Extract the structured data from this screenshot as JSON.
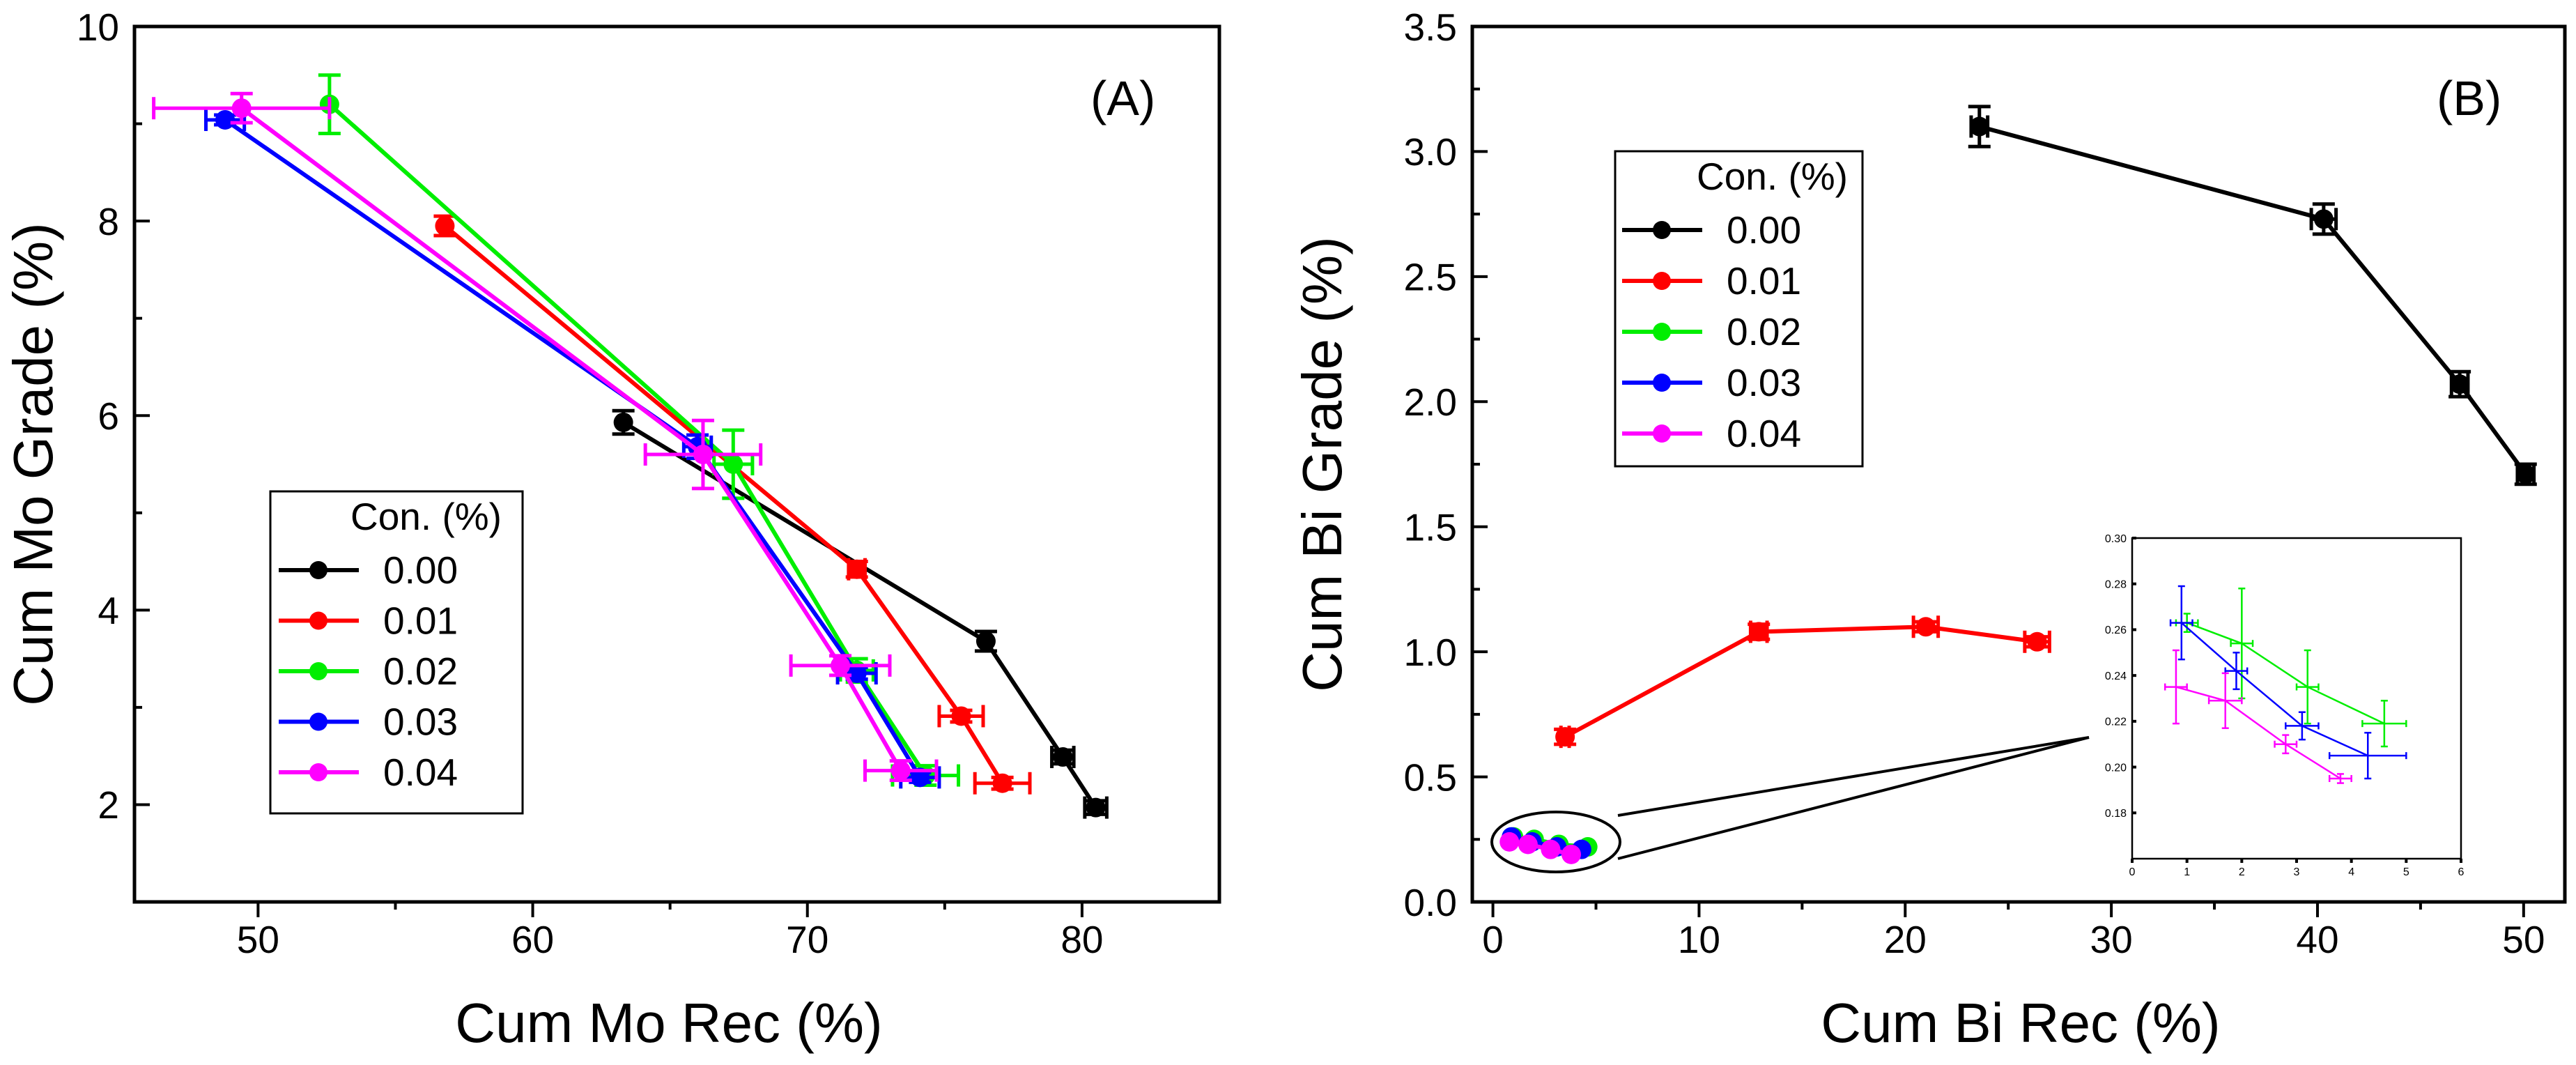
{
  "chart_data": [
    {
      "type": "line",
      "panel_label": "(A)",
      "xlabel": "Cum Mo Rec (%)",
      "ylabel": "Cum Mo Grade (%)",
      "xlim": [
        45.5,
        85
      ],
      "ylim": [
        1,
        10
      ],
      "xticks": [
        "50",
        "60",
        "70",
        "80"
      ],
      "yticks": [
        "2",
        "4",
        "6",
        "8",
        "10"
      ],
      "legend": {
        "title": "Con. (%)",
        "position": "bottom-left"
      },
      "series": [
        {
          "name": "0.00",
          "color": "#000000",
          "marker": "circle",
          "x": [
            63.3,
            76.5,
            79.3,
            80.5
          ],
          "y": [
            5.93,
            3.68,
            2.49,
            1.97
          ],
          "xerr": [
            0,
            0,
            0.4,
            0.4
          ],
          "yerr": [
            0.12,
            0.1,
            0.07,
            0.07
          ]
        },
        {
          "name": "0.01",
          "color": "#ff0000",
          "marker": "circle",
          "x": [
            56.8,
            71.8,
            75.6,
            77.1
          ],
          "y": [
            7.95,
            4.42,
            2.91,
            2.22
          ],
          "xerr": [
            0,
            0.3,
            0.8,
            1.0
          ],
          "yerr": [
            0.1,
            0.08,
            0.06,
            0.06
          ]
        },
        {
          "name": "0.02",
          "color": "#00ee00",
          "marker": "circle",
          "x": [
            52.6,
            67.3,
            71.8,
            74.3
          ],
          "y": [
            9.2,
            5.5,
            3.38,
            2.3
          ],
          "xerr": [
            0,
            0.7,
            0.6,
            1.2
          ],
          "yerr": [
            0.3,
            0.35,
            0.12,
            0.1
          ]
        },
        {
          "name": "0.03",
          "color": "#0000ff",
          "marker": "circle",
          "x": [
            48.8,
            66.0,
            71.8,
            74.1
          ],
          "y": [
            9.04,
            5.68,
            3.35,
            2.28
          ],
          "xerr": [
            0.7,
            0.5,
            0.7,
            0.7
          ],
          "yerr": [
            0.05,
            0.12,
            0.06,
            0.05
          ]
        },
        {
          "name": "0.04",
          "color": "#ff00ff",
          "marker": "circle",
          "x": [
            49.4,
            66.2,
            71.2,
            73.4
          ],
          "y": [
            9.16,
            5.6,
            3.43,
            2.35
          ],
          "xerr": [
            3.2,
            2.1,
            1.8,
            1.3
          ],
          "yerr": [
            0.15,
            0.35,
            0.1,
            0.1
          ]
        }
      ]
    },
    {
      "type": "line",
      "panel_label": "(B)",
      "xlabel": "Cum Bi Rec (%)",
      "ylabel": "Cum Bi Grade (%)",
      "xlim": [
        -1,
        52
      ],
      "ylim": [
        0,
        3.5
      ],
      "xticks": [
        "0",
        "10",
        "20",
        "30",
        "40",
        "50"
      ],
      "yticks": [
        "0.0",
        "0.5",
        "1.0",
        "1.5",
        "2.0",
        "2.5",
        "3.0",
        "3.5"
      ],
      "legend": {
        "title": "Con. (%)",
        "position": "top-left"
      },
      "series": [
        {
          "name": "0.00",
          "color": "#000000",
          "marker": "circle",
          "x": [
            23.6,
            40.3,
            46.9,
            50.1
          ],
          "y": [
            3.1,
            2.73,
            2.07,
            1.71
          ],
          "xerr": [
            0.4,
            0.6,
            0.4,
            0.4
          ],
          "yerr": [
            0.08,
            0.06,
            0.05,
            0.04
          ]
        },
        {
          "name": "0.01",
          "color": "#ff0000",
          "marker": "circle",
          "x": [
            3.5,
            12.9,
            21.0,
            26.4
          ],
          "y": [
            0.66,
            1.08,
            1.1,
            1.04
          ],
          "xerr": [
            0.2,
            0.4,
            0.6,
            0.6
          ],
          "yerr": [
            0.03,
            0.03,
            0.02,
            0.02
          ]
        },
        {
          "name": "0.02",
          "color": "#00ee00",
          "marker": "circle",
          "x": [
            1.0,
            2.0,
            3.2,
            4.6
          ],
          "y": [
            0.26,
            0.25,
            0.23,
            0.22
          ],
          "xerr": [
            0,
            0,
            0,
            0
          ],
          "yerr": [
            0,
            0,
            0,
            0
          ]
        },
        {
          "name": "0.03",
          "color": "#0000ff",
          "marker": "circle",
          "x": [
            0.9,
            1.9,
            3.1,
            4.3
          ],
          "y": [
            0.26,
            0.24,
            0.22,
            0.21
          ],
          "xerr": [
            0,
            0,
            0,
            0
          ],
          "yerr": [
            0,
            0,
            0,
            0
          ]
        },
        {
          "name": "0.04",
          "color": "#ff00ff",
          "marker": "circle",
          "x": [
            0.8,
            1.7,
            2.8,
            3.8
          ],
          "y": [
            0.24,
            0.23,
            0.21,
            0.19
          ],
          "xerr": [
            0,
            0,
            0,
            0
          ],
          "yerr": [
            0,
            0,
            0,
            0
          ]
        }
      ],
      "inset": {
        "xlim": [
          0,
          6
        ],
        "ylim": [
          0.16,
          0.3
        ],
        "xticks": [
          "0",
          "1",
          "2",
          "3",
          "4",
          "5",
          "6"
        ],
        "yticks": [
          "0.18",
          "0.20",
          "0.22",
          "0.24",
          "0.26",
          "0.28",
          "0.30"
        ],
        "series": [
          {
            "name": "0.02",
            "color": "#00ee00",
            "x": [
              1.0,
              2.0,
              3.2,
              4.6
            ],
            "y": [
              0.263,
              0.254,
              0.235,
              0.219
            ],
            "xerr": [
              0.2,
              0.2,
              0.2,
              0.4
            ],
            "yerr": [
              0.004,
              0.024,
              0.016,
              0.01
            ]
          },
          {
            "name": "0.03",
            "color": "#0000ff",
            "x": [
              0.9,
              1.9,
              3.1,
              4.3
            ],
            "y": [
              0.263,
              0.242,
              0.218,
              0.205
            ],
            "xerr": [
              0.2,
              0.2,
              0.3,
              0.7
            ],
            "yerr": [
              0.016,
              0.008,
              0.006,
              0.01
            ]
          },
          {
            "name": "0.04",
            "color": "#ff00ff",
            "x": [
              0.8,
              1.7,
              2.8,
              3.8
            ],
            "y": [
              0.235,
              0.229,
              0.21,
              0.195
            ],
            "xerr": [
              0.2,
              0.3,
              0.2,
              0.2
            ],
            "yerr": [
              0.016,
              0.012,
              0.004,
              0.002
            ]
          }
        ]
      }
    }
  ]
}
